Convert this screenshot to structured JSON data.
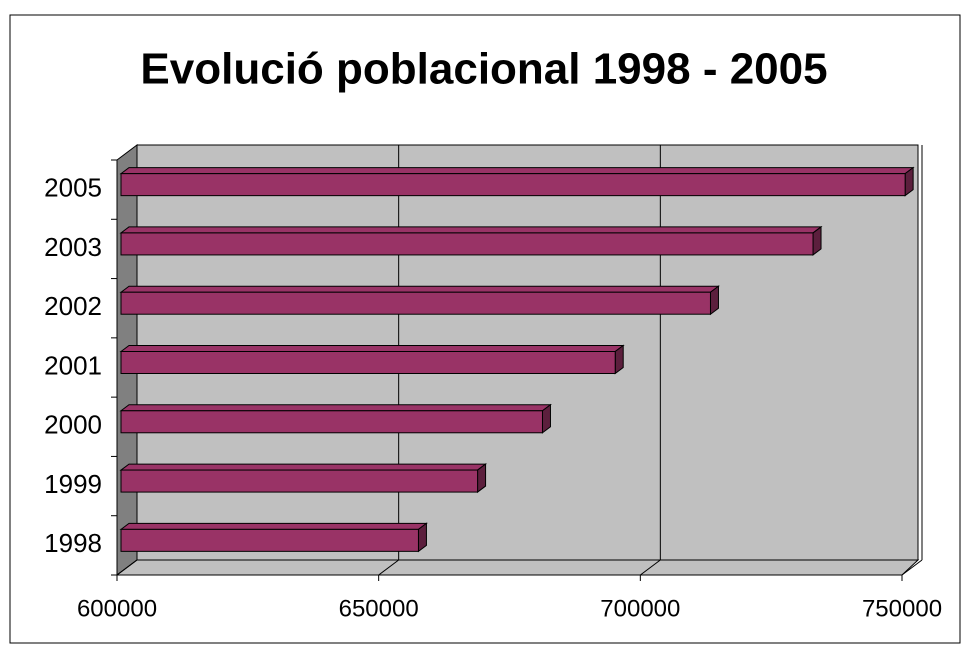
{
  "chart_data": {
    "type": "bar",
    "orientation": "horizontal",
    "title": "Evolució poblacional 1998 - 2005",
    "categories": [
      "1998",
      "1999",
      "2000",
      "2001",
      "2002",
      "2003",
      "2005"
    ],
    "values": [
      657600,
      668900,
      681300,
      695200,
      713400,
      733000,
      750600
    ],
    "color": "#993366",
    "xlim": [
      600000,
      750000
    ],
    "xticks": [
      600000,
      650000,
      700000,
      750000
    ],
    "grid": true
  }
}
